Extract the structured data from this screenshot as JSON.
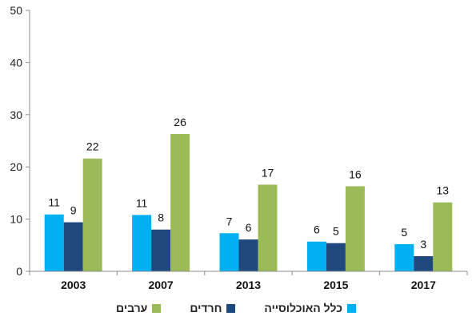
{
  "chart_data": {
    "type": "bar",
    "categories": [
      "2003",
      "2007",
      "2013",
      "2015",
      "2017"
    ],
    "series": [
      {
        "name": "כלל האוכלוסייה",
        "color": "#00B0F0",
        "values": [
          11,
          11,
          7,
          6,
          5
        ],
        "heights": [
          10.9,
          10.8,
          7.3,
          5.7,
          5.2
        ]
      },
      {
        "name": "חרדים",
        "color": "#1F497D",
        "values": [
          9,
          8,
          6,
          5,
          3
        ],
        "heights": [
          9.4,
          8.0,
          6.1,
          5.4,
          2.9
        ]
      },
      {
        "name": "ערבים",
        "color": "#9BBB59",
        "values": [
          22,
          26,
          17,
          16,
          13
        ],
        "heights": [
          21.6,
          26.3,
          16.6,
          16.3,
          13.2
        ]
      }
    ],
    "ylim": [
      0,
      50
    ],
    "yticks": [
      0,
      10,
      20,
      30,
      40,
      50
    ],
    "grid": false,
    "legend_position": "bottom"
  }
}
